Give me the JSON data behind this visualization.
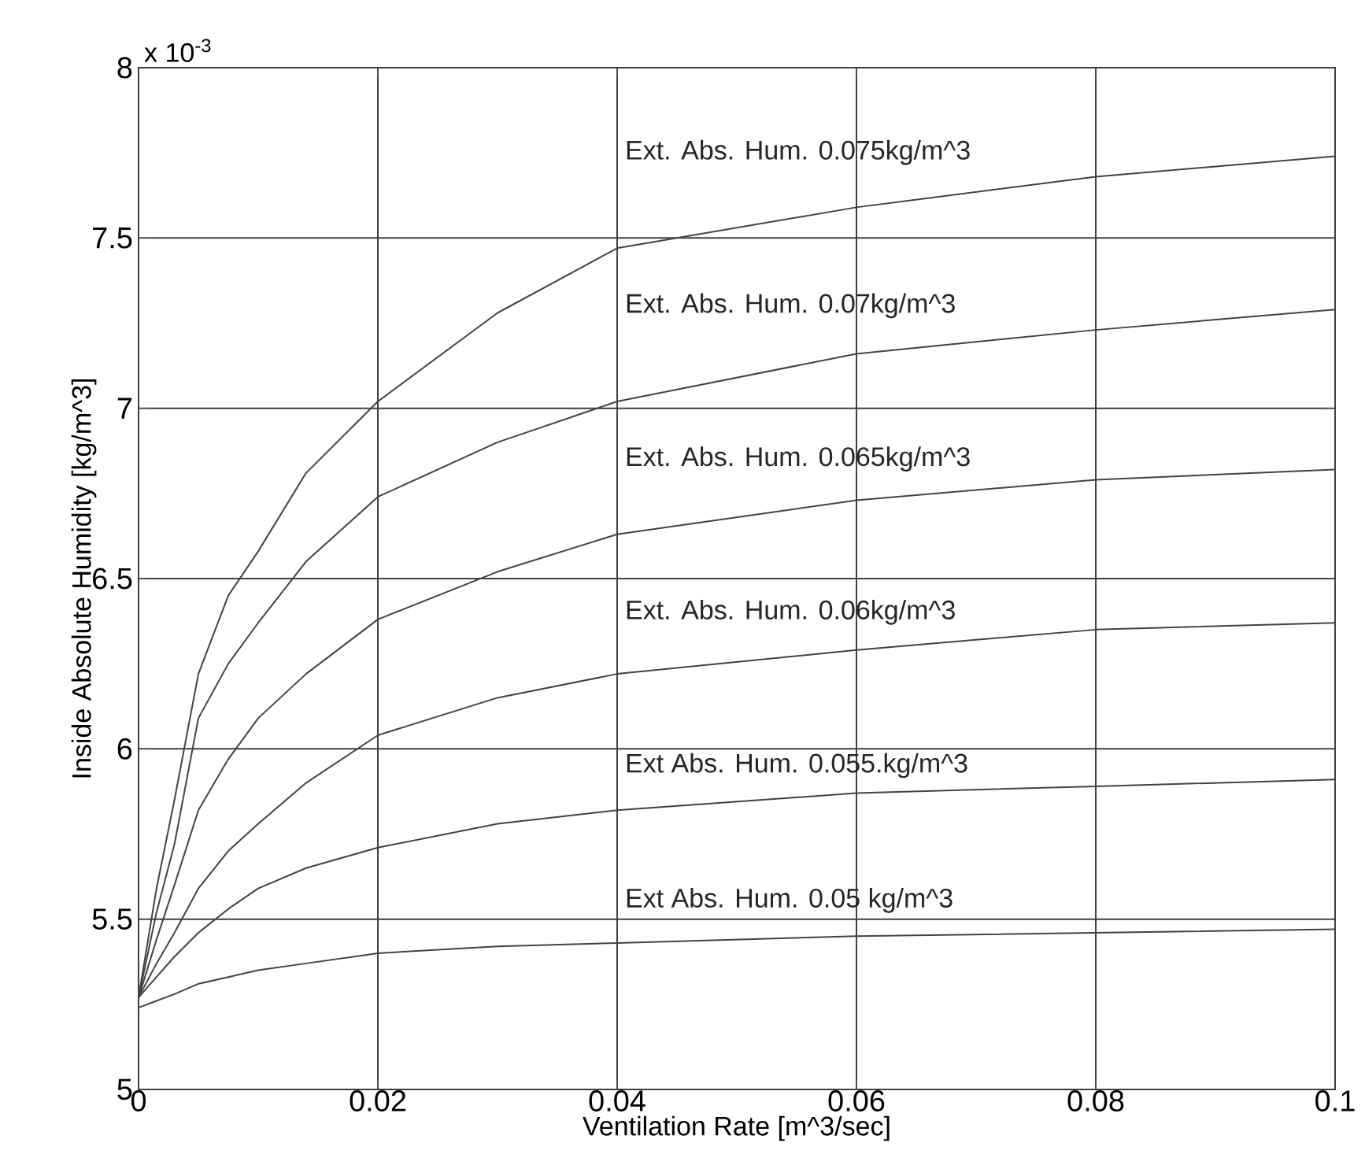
{
  "chart_data": {
    "type": "line",
    "xlabel": "Ventilation Rate [m^3/sec]",
    "ylabel": "Inside Absolute Humidity [kg/m^3]",
    "annotations": [
      "x 10$^{-3}$"
    ],
    "x": [
      0,
      0.0015,
      0.003,
      0.005,
      0.0075,
      0.01,
      0.014,
      0.02,
      0.03,
      0.04,
      0.06,
      0.08,
      0.1
    ],
    "series": [
      {
        "name": "Ext. Abs. Hum. 0.075kg/m^3",
        "color": "#404448",
        "values": [
          5.27,
          5.59,
          5.85,
          6.22,
          6.45,
          6.58,
          6.81,
          7.02,
          7.28,
          7.47,
          7.59,
          7.68,
          7.74
        ]
      },
      {
        "name": "Ext. Abs. Hum. 0.07kg/m^3",
        "color": "#404448",
        "values": [
          5.27,
          5.52,
          5.72,
          6.09,
          6.25,
          6.37,
          6.55,
          6.74,
          6.9,
          7.02,
          7.16,
          7.23,
          7.29
        ]
      },
      {
        "name": "Ext. Abs. Hum. 0.065kg/m^3",
        "color": "#404448",
        "values": [
          5.27,
          5.44,
          5.6,
          5.82,
          5.97,
          6.09,
          6.22,
          6.38,
          6.52,
          6.63,
          6.73,
          6.79,
          6.82
        ]
      },
      {
        "name": "Ext. Abs. Hum. 0.06kg/m^3",
        "color": "#404448",
        "values": [
          5.27,
          5.37,
          5.46,
          5.59,
          5.7,
          5.78,
          5.9,
          6.04,
          6.15,
          6.22,
          6.29,
          6.35,
          6.37
        ]
      },
      {
        "name": "Ext Abs. Hum. 0.055.kg/m^3",
        "color": "#404448",
        "values": [
          5.27,
          5.33,
          5.39,
          5.46,
          5.53,
          5.59,
          5.65,
          5.71,
          5.78,
          5.82,
          5.87,
          5.89,
          5.91
        ]
      },
      {
        "name": "Ext Abs. Hum. 0.05 kg/m^3",
        "color": "#404448",
        "values": [
          5.24,
          5.26,
          5.28,
          5.31,
          5.33,
          5.35,
          5.37,
          5.4,
          5.42,
          5.43,
          5.45,
          5.46,
          5.47
        ]
      }
    ],
    "xlim": [
      0,
      0.1
    ],
    "ylim": [
      5,
      8
    ],
    "xticks": [
      0,
      0.02,
      0.04,
      0.06,
      0.08,
      0.1
    ],
    "yticks": [
      5,
      5.5,
      6,
      6.5,
      7,
      7.5,
      8
    ],
    "grid": true,
    "line_style": "solid"
  }
}
